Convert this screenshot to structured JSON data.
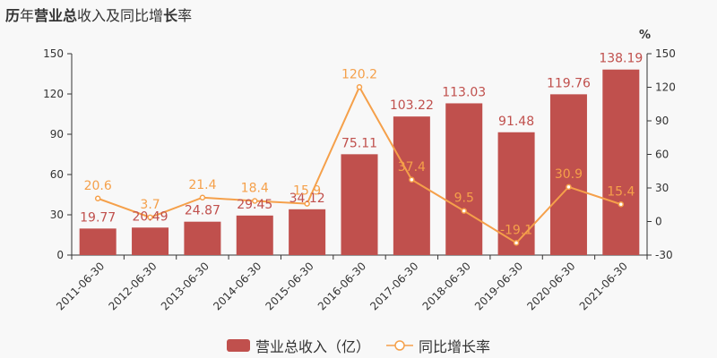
{
  "title": {
    "parts": [
      {
        "text": "历",
        "bold": true
      },
      {
        "text": "年",
        "bold": false
      },
      {
        "text": "营业总",
        "bold": true
      },
      {
        "text": "收入及同比增",
        "bold": false
      },
      {
        "text": "长",
        "bold": true
      },
      {
        "text": "率",
        "bold": false
      }
    ]
  },
  "colors": {
    "bar": "#c0504d",
    "line": "#f5a04a",
    "bar_label": "#c0504d",
    "line_label": "#f5a04a",
    "axis": "#333333",
    "grid": "#e0e0e0"
  },
  "chart_data": {
    "type": "bar",
    "categories": [
      "2011-06-30",
      "2012-06-30",
      "2013-06-30",
      "2014-06-30",
      "2015-06-30",
      "2016-06-30",
      "2017-06-30",
      "2018-06-30",
      "2019-06-30",
      "2020-06-30",
      "2021-06-30"
    ],
    "series": [
      {
        "name": "营业总收入（亿）",
        "type": "bar",
        "axis": "left",
        "values": [
          19.77,
          20.49,
          24.87,
          29.45,
          34.12,
          75.11,
          103.22,
          113.03,
          91.48,
          119.76,
          138.19
        ],
        "labels": [
          "19.77",
          "20.49",
          "24.87",
          "29.45",
          "34.12",
          "75.11",
          "103.22",
          "113.03",
          "91.48",
          "119.76",
          "138.19"
        ]
      },
      {
        "name": "同比增长率",
        "type": "line",
        "axis": "right",
        "values": [
          20.6,
          3.7,
          21.4,
          18.4,
          15.9,
          120.2,
          37.4,
          9.5,
          -19.1,
          30.9,
          15.4
        ],
        "labels": [
          "20.6",
          "3.7",
          "21.4",
          "18.4",
          "15.9",
          "120.2",
          "37.4",
          "9.5",
          "-19.1",
          "30.9",
          "15.4"
        ]
      }
    ],
    "y_left": {
      "min": 0,
      "max": 150,
      "ticks": [
        "0",
        "30",
        "60",
        "90",
        "120",
        "150"
      ]
    },
    "y_right": {
      "min": -30,
      "max": 150,
      "unit": "%",
      "ticks": [
        "-30",
        "0",
        "30",
        "60",
        "90",
        "120",
        "150"
      ]
    },
    "grid": false,
    "legend_position": "bottom-center"
  }
}
